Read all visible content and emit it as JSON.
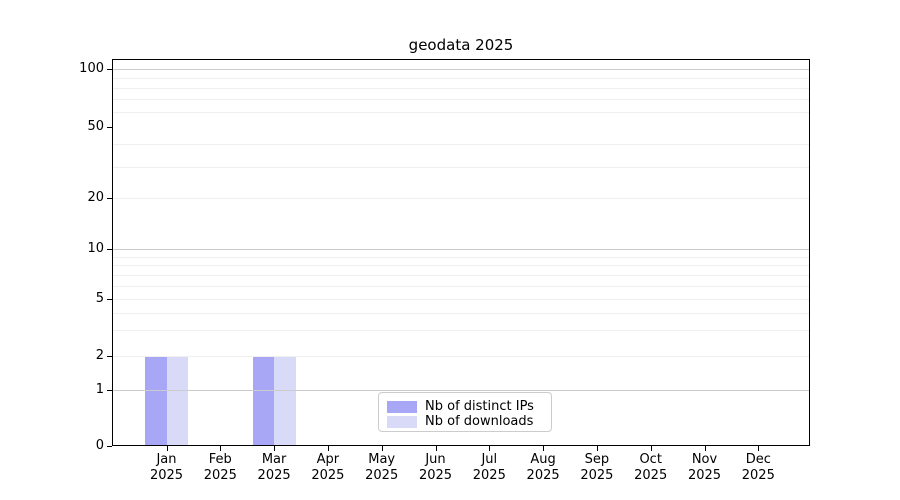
{
  "title": "geodata 2025",
  "chart_data": {
    "type": "bar",
    "title": "geodata 2025",
    "categories": [
      "Jan 2025",
      "Feb 2025",
      "Mar 2025",
      "Apr 2025",
      "May 2025",
      "Jun 2025",
      "Jul 2025",
      "Aug 2025",
      "Sep 2025",
      "Oct 2025",
      "Nov 2025",
      "Dec 2025"
    ],
    "x_months": [
      "Jan",
      "Feb",
      "Mar",
      "Apr",
      "May",
      "Jun",
      "Jul",
      "Aug",
      "Sep",
      "Oct",
      "Nov",
      "Dec"
    ],
    "x_year": "2025",
    "series": [
      {
        "name": "Nb of distinct IPs",
        "color": "#a7a7f5",
        "values": [
          2,
          0,
          2,
          0,
          0,
          0,
          0,
          0,
          0,
          0,
          0,
          0
        ]
      },
      {
        "name": "Nb of downloads",
        "color": "#d9d9f8",
        "values": [
          2,
          0,
          2,
          0,
          0,
          0,
          0,
          0,
          0,
          0,
          0,
          0
        ]
      }
    ],
    "xlabel": "",
    "ylabel": "",
    "yscale": "symlog",
    "ylim": [
      0,
      115
    ],
    "ytick_labels": [
      0,
      1,
      2,
      5,
      10,
      20,
      50,
      100
    ],
    "major_grid_values": [
      1,
      10,
      100
    ],
    "minor_grid_values": [
      2,
      3,
      4,
      5,
      6,
      7,
      8,
      9,
      20,
      30,
      40,
      60,
      70,
      80,
      90
    ],
    "grid": "horizontal",
    "legend_position": "lower center",
    "colors": {
      "background": "#ffffff",
      "frame": "#000000",
      "major_grid": "#cccccc",
      "minor_grid": "#efefef",
      "text": "#000000",
      "legend_border": "#cccccc"
    }
  }
}
